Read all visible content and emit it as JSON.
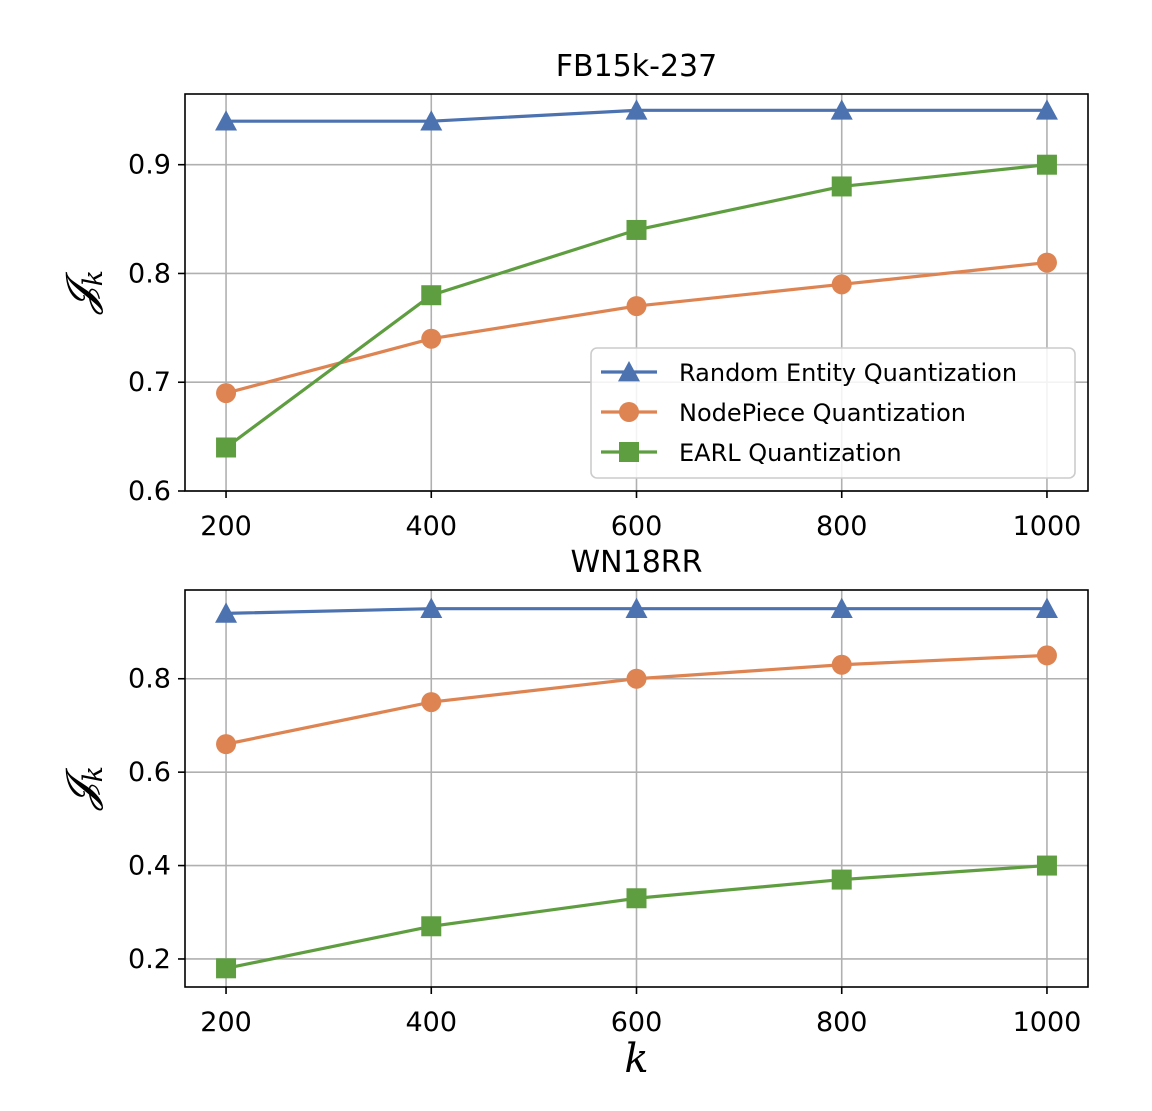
{
  "chart_data": [
    {
      "type": "line",
      "title": "FB15k-237",
      "xlabel": "",
      "ylabel": "𝓙",
      "ylabel_sub": "k",
      "x": [
        200,
        400,
        600,
        800,
        1000
      ],
      "xlim": [
        160,
        1040
      ],
      "ylim": [
        0.6,
        0.965
      ],
      "yticks": [
        0.6,
        0.7,
        0.8,
        0.9
      ],
      "ytick_labels": [
        "0.6",
        "0.7",
        "0.8",
        "0.9"
      ],
      "xtick_labels": [
        "200",
        "400",
        "600",
        "800",
        "1000"
      ],
      "grid": true,
      "legend_position": "lower-right",
      "series": [
        {
          "name": "Random Entity Quantization",
          "color": "#4c72b0",
          "marker": "triangle",
          "values": [
            0.94,
            0.94,
            0.95,
            0.95,
            0.95
          ]
        },
        {
          "name": "NodePiece Quantization",
          "color": "#dd8452",
          "marker": "circle",
          "values": [
            0.69,
            0.74,
            0.77,
            0.79,
            0.81
          ]
        },
        {
          "name": "EARL Quantization",
          "color": "#5f9e40",
          "marker": "square",
          "values": [
            0.64,
            0.78,
            0.84,
            0.88,
            0.9
          ]
        }
      ]
    },
    {
      "type": "line",
      "title": "WN18RR",
      "xlabel": "k",
      "ylabel": "𝓙",
      "ylabel_sub": "k",
      "x": [
        200,
        400,
        600,
        800,
        1000
      ],
      "xlim": [
        160,
        1040
      ],
      "ylim": [
        0.14,
        0.99
      ],
      "yticks": [
        0.2,
        0.4,
        0.6,
        0.8
      ],
      "ytick_labels": [
        "0.2",
        "0.4",
        "0.6",
        "0.8"
      ],
      "xtick_labels": [
        "200",
        "400",
        "600",
        "800",
        "1000"
      ],
      "grid": true,
      "series": [
        {
          "name": "Random Entity Quantization",
          "color": "#4c72b0",
          "marker": "triangle",
          "values": [
            0.94,
            0.95,
            0.95,
            0.95,
            0.95
          ]
        },
        {
          "name": "NodePiece Quantization",
          "color": "#dd8452",
          "marker": "circle",
          "values": [
            0.66,
            0.75,
            0.8,
            0.83,
            0.85
          ]
        },
        {
          "name": "EARL Quantization",
          "color": "#5f9e40",
          "marker": "square",
          "values": [
            0.18,
            0.27,
            0.33,
            0.37,
            0.4
          ]
        }
      ]
    }
  ]
}
